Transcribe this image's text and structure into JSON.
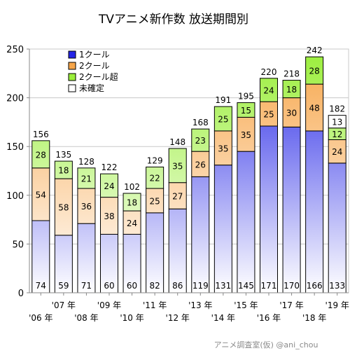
{
  "chart_data": {
    "type": "bar",
    "stacked": true,
    "title": "TVアニメ新作数 放送期間別",
    "categories": [
      "'06 年",
      "'07 年",
      "'08 年",
      "'09 年",
      "'10 年",
      "'11 年",
      "'12 年",
      "'13 年",
      "'14 年",
      "'15 年",
      "'16 年",
      "'17 年",
      "'18 年",
      "'19 年"
    ],
    "series": [
      {
        "name": "1クール",
        "color": "#2424e6",
        "values": [
          74,
          59,
          71,
          60,
          60,
          82,
          86,
          119,
          131,
          145,
          171,
          170,
          166,
          133
        ]
      },
      {
        "name": "2クール",
        "color": "#f7a64a",
        "values": [
          54,
          58,
          36,
          38,
          24,
          25,
          27,
          26,
          35,
          35,
          25,
          30,
          48,
          24
        ]
      },
      {
        "name": "2クール超",
        "color": "#9aee3a",
        "values": [
          28,
          18,
          21,
          24,
          18,
          22,
          35,
          23,
          25,
          15,
          24,
          18,
          28,
          12
        ]
      },
      {
        "name": "未確定",
        "color": "#ffffff",
        "values": [
          0,
          0,
          0,
          0,
          0,
          0,
          0,
          0,
          0,
          0,
          0,
          0,
          0,
          13
        ]
      }
    ],
    "totals": [
      156,
      135,
      128,
      122,
      102,
      129,
      148,
      168,
      191,
      195,
      220,
      218,
      242,
      182
    ],
    "ylim": [
      0,
      250
    ],
    "yticks": [
      0,
      50,
      100,
      150,
      200,
      250
    ],
    "grid": true,
    "legend": "top-left",
    "credit": "アニメ調査室(仮) @ani_chou"
  }
}
